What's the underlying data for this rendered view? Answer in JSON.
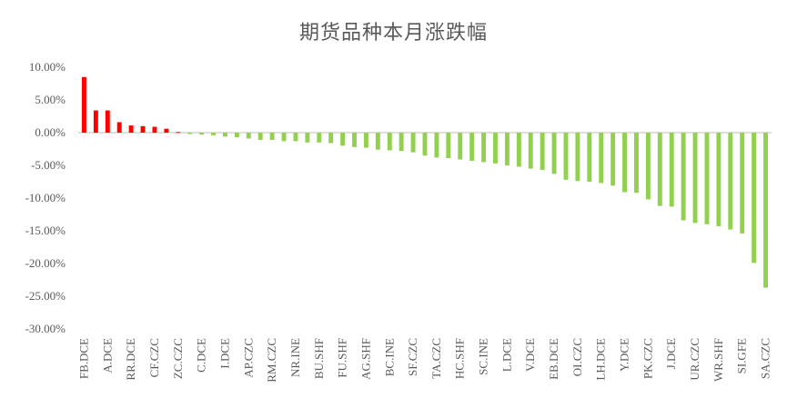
{
  "chart_data": {
    "type": "bar",
    "title": "期货品种本月涨跌幅",
    "xlabel": "",
    "ylabel": "",
    "ylim": [
      -30,
      10
    ],
    "yticks": [
      10,
      5,
      0,
      -5,
      -10,
      -15,
      -20,
      -25,
      -30
    ],
    "ytick_labels": [
      "10.00%",
      "5.00%",
      "0.00%",
      "-5.00%",
      "-10.00%",
      "-15.00%",
      "-20.00%",
      "-25.00%",
      "-30.00%"
    ],
    "grid": false,
    "legend": "none",
    "colors": {
      "positive": "#ff0000",
      "negative": "#92d050",
      "axis": "#bfbfbf",
      "text": "#595959"
    },
    "categories": [
      "FB.DCE",
      "",
      "A.DCE",
      "",
      "RR.DCE",
      "",
      "CF.CZC",
      "",
      "ZC.CZC",
      "",
      "C.DCE",
      "",
      "I.DCE",
      "",
      "AP.CZC",
      "",
      "RM.CZC",
      "",
      "NR.INE",
      "",
      "BU.SHF",
      "",
      "FU.SHF",
      "",
      "AG.SHF",
      "",
      "BC.INE",
      "",
      "SF.CZC",
      "",
      "TA.CZC",
      "",
      "HC.SHF",
      "",
      "SC.INE",
      "",
      "L.DCE",
      "",
      "V.DCE",
      "",
      "EB.DCE",
      "",
      "OI.CZC",
      "",
      "LH.DCE",
      "",
      "Y.DCE",
      "",
      "PK.CZC",
      "",
      "J.DCE",
      "",
      "UR.CZC",
      "",
      "WR.SHF",
      "",
      "SI.GFE",
      "",
      "SA.CZC"
    ],
    "values": [
      8.5,
      3.4,
      3.4,
      1.6,
      1.1,
      1.0,
      0.9,
      0.6,
      0.1,
      -0.2,
      -0.3,
      -0.4,
      -0.6,
      -0.7,
      -0.9,
      -1.1,
      -1.1,
      -1.3,
      -1.3,
      -1.5,
      -1.5,
      -1.6,
      -2.0,
      -2.2,
      -2.3,
      -2.6,
      -2.7,
      -2.8,
      -3.0,
      -3.5,
      -3.8,
      -3.9,
      -4.1,
      -4.3,
      -4.5,
      -4.7,
      -5.0,
      -5.2,
      -5.5,
      -5.7,
      -6.3,
      -7.2,
      -7.4,
      -7.5,
      -7.7,
      -8.1,
      -9.1,
      -9.2,
      -10.2,
      -11.2,
      -11.3,
      -13.4,
      -13.8,
      -14.0,
      -14.3,
      -14.8,
      -15.4,
      -19.9,
      -23.7
    ]
  }
}
